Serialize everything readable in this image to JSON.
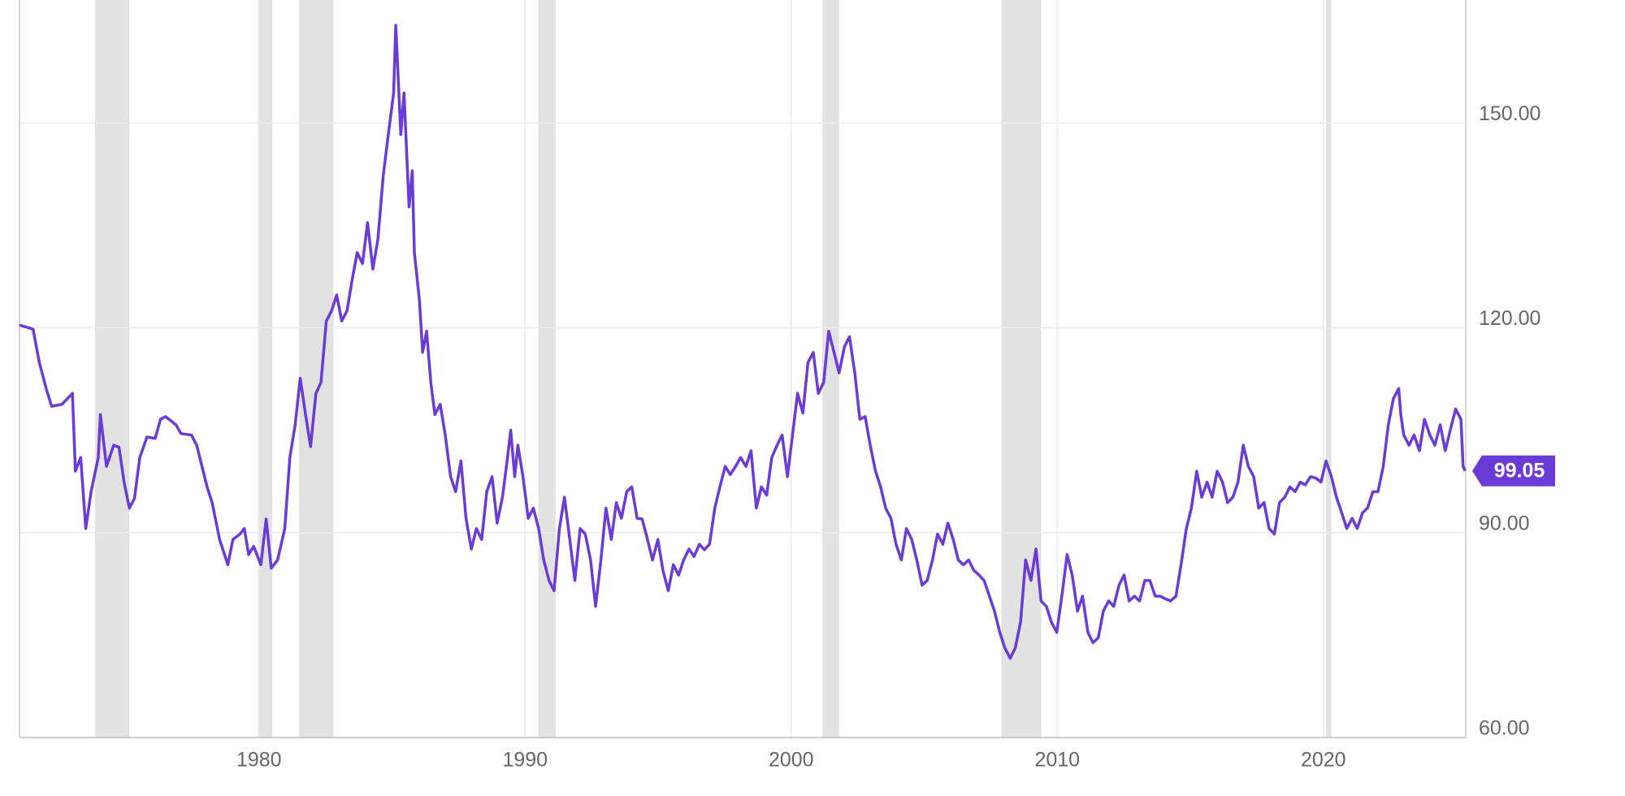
{
  "chart_data": {
    "type": "line",
    "x": [
      1971.0,
      1971.51,
      1971.74,
      1972.01,
      1972.21,
      1972.6,
      1972.99,
      1973.1,
      1973.3,
      1973.49,
      1973.69,
      1973.96,
      1974.04,
      1974.27,
      1974.54,
      1974.74,
      1974.93,
      1975.13,
      1975.32,
      1975.52,
      1975.79,
      1976.1,
      1976.3,
      1976.49,
      1976.88,
      1977.07,
      1977.46,
      1977.66,
      1978.05,
      1978.24,
      1978.52,
      1978.83,
      1979.02,
      1979.29,
      1979.45,
      1979.61,
      1979.8,
      1980.07,
      1980.27,
      1980.46,
      1980.7,
      1980.97,
      1981.16,
      1981.36,
      1981.55,
      1981.75,
      1981.94,
      1982.14,
      1982.33,
      1982.53,
      1982.73,
      1982.92,
      1983.11,
      1983.31,
      1983.5,
      1983.69,
      1983.89,
      1984.08,
      1984.28,
      1984.47,
      1984.67,
      1984.86,
      1985.06,
      1985.14,
      1985.33,
      1985.45,
      1985.64,
      1985.76,
      1985.84,
      1986.03,
      1986.15,
      1986.3,
      1986.46,
      1986.61,
      1986.81,
      1987.0,
      1987.2,
      1987.39,
      1987.59,
      1987.78,
      1987.98,
      1988.17,
      1988.37,
      1988.56,
      1988.76,
      1988.95,
      1989.15,
      1989.34,
      1989.46,
      1989.61,
      1989.73,
      1989.92,
      1990.12,
      1990.31,
      1990.51,
      1990.7,
      1990.9,
      1991.09,
      1991.29,
      1991.48,
      1991.68,
      1991.87,
      1992.07,
      1992.26,
      1992.46,
      1992.65,
      1992.85,
      1993.04,
      1993.24,
      1993.43,
      1993.62,
      1993.82,
      1994.01,
      1994.21,
      1994.4,
      1994.6,
      1994.79,
      1994.99,
      1995.18,
      1995.38,
      1995.57,
      1995.77,
      1995.96,
      1996.16,
      1996.35,
      1996.55,
      1996.74,
      1996.93,
      1997.13,
      1997.32,
      1997.52,
      1997.71,
      1997.91,
      1998.1,
      1998.3,
      1998.49,
      1998.69,
      1998.88,
      1999.08,
      1999.27,
      1999.47,
      1999.66,
      1999.86,
      2000.05,
      2000.24,
      2000.44,
      2000.63,
      2000.83,
      2001.02,
      2001.22,
      2001.41,
      2001.61,
      2001.8,
      2002.0,
      2002.19,
      2002.39,
      2002.58,
      2002.78,
      2002.97,
      2003.17,
      2003.36,
      2003.55,
      2003.75,
      2003.94,
      2004.14,
      2004.33,
      2004.53,
      2004.72,
      2004.92,
      2005.11,
      2005.31,
      2005.5,
      2005.7,
      2005.89,
      2006.09,
      2006.28,
      2006.47,
      2006.67,
      2006.86,
      2007.06,
      2007.25,
      2007.45,
      2007.64,
      2007.84,
      2008.03,
      2008.23,
      2008.42,
      2008.62,
      2008.81,
      2009.01,
      2009.2,
      2009.39,
      2009.59,
      2009.78,
      2009.98,
      2010.17,
      2010.37,
      2010.56,
      2010.76,
      2010.95,
      2011.15,
      2011.34,
      2011.54,
      2011.73,
      2011.93,
      2012.12,
      2012.32,
      2012.51,
      2012.7,
      2012.9,
      2013.09,
      2013.29,
      2013.48,
      2013.68,
      2013.87,
      2014.07,
      2014.26,
      2014.46,
      2014.65,
      2014.85,
      2015.04,
      2015.24,
      2015.43,
      2015.63,
      2015.82,
      2016.01,
      2016.21,
      2016.4,
      2016.6,
      2016.79,
      2016.99,
      2017.18,
      2017.38,
      2017.57,
      2017.77,
      2017.96,
      2018.16,
      2018.35,
      2018.55,
      2018.74,
      2018.94,
      2019.13,
      2019.32,
      2019.52,
      2019.71,
      2019.91,
      2020.1,
      2020.3,
      2020.49,
      2020.69,
      2020.88,
      2021.08,
      2021.27,
      2021.47,
      2021.66,
      2021.86,
      2022.05,
      2022.25,
      2022.44,
      2022.63,
      2022.83,
      2022.91,
      2023.02,
      2023.22,
      2023.41,
      2023.61,
      2023.8,
      2024.0,
      2024.19,
      2024.39,
      2024.58,
      2024.78,
      2024.97,
      2025.17,
      2025.25,
      2025.33
    ],
    "series": [
      {
        "color": "#6a3bd6",
        "values": [
          120.4,
          119.8,
          115,
          111,
          108.5,
          108.8,
          110.4,
          99,
          101,
          90.6,
          96,
          101,
          107.3,
          99.7,
          102.8,
          102.5,
          97.4,
          93.6,
          95,
          101,
          104,
          103.8,
          106.6,
          107,
          105.8,
          104.5,
          104.3,
          102.8,
          96.7,
          94.4,
          89,
          85.3,
          89,
          89.8,
          90.6,
          86.8,
          88,
          85.3,
          92,
          84.8,
          86,
          90.6,
          101,
          105.8,
          112.6,
          107.3,
          102.6,
          110.4,
          112,
          121,
          122.5,
          124.8,
          121,
          122.5,
          127,
          131,
          129.4,
          135.4,
          128.6,
          133,
          142.3,
          148.3,
          154.4,
          164.3,
          148.3,
          154.4,
          137.7,
          143,
          131,
          124,
          116.4,
          119.5,
          111.9,
          107.3,
          108.8,
          104.3,
          98.2,
          96,
          100.5,
          92.1,
          87.6,
          90.6,
          89,
          96,
          98.2,
          91.4,
          95.2,
          101,
          105,
          98.2,
          102.8,
          98.2,
          92.1,
          93.6,
          90.6,
          86,
          83,
          81.5,
          90.6,
          95.2,
          89,
          83,
          90.6,
          89.8,
          86,
          79.2,
          86,
          93.6,
          89,
          94.4,
          92.1,
          96,
          96.7,
          92.1,
          92,
          89,
          86,
          89,
          84.5,
          81.5,
          85.3,
          83.8,
          86,
          87.6,
          86.5,
          88.3,
          87.5,
          88.3,
          93.6,
          96.7,
          99.7,
          98.5,
          99.7,
          101,
          99.7,
          102,
          93.6,
          96.7,
          95.5,
          101,
          102.8,
          104.3,
          98.2,
          104.3,
          110.4,
          107.5,
          114.9,
          116.4,
          110.4,
          112,
          119.5,
          116.4,
          113.4,
          117.2,
          118.7,
          113.4,
          106.6,
          107,
          102.8,
          99,
          96.7,
          93.6,
          92.1,
          88.3,
          86,
          90.6,
          89,
          86,
          82.3,
          83,
          86,
          89.8,
          88.3,
          91.4,
          89,
          86,
          85.3,
          86,
          84.5,
          83.8,
          83,
          80.7,
          78.5,
          75.4,
          73.1,
          71.6,
          73.1,
          76.9,
          86,
          83,
          87.6,
          80,
          79.2,
          76.9,
          75.4,
          80.7,
          86.8,
          83.8,
          78.5,
          80.7,
          75.4,
          73.9,
          74.6,
          78.5,
          80,
          79.2,
          82.3,
          83.8,
          80,
          80.7,
          80,
          83,
          83,
          80.7,
          80.7,
          80.3,
          80,
          80.7,
          85.3,
          90.6,
          93.6,
          99,
          95.2,
          97.4,
          95.2,
          99,
          97.4,
          94.4,
          95.2,
          97.4,
          102.8,
          99.7,
          98.2,
          93.6,
          94.4,
          90.6,
          89.8,
          94.4,
          95.2,
          96.7,
          96,
          97.4,
          97,
          98.2,
          98,
          97.4,
          100.5,
          98.2,
          95.2,
          92.9,
          90.6,
          92.1,
          90.6,
          92.9,
          93.6,
          96,
          96,
          99.7,
          105.8,
          109.6,
          111.1,
          107.3,
          104.3,
          102.8,
          104.3,
          102,
          106.6,
          104.3,
          102.8,
          105.8,
          102,
          105.2,
          108.1,
          106.6,
          99.7,
          99.05
        ]
      }
    ],
    "current_value": 99.05,
    "recessions": [
      {
        "start": 1973.84,
        "end": 1975.13
      },
      {
        "start": 1979.96,
        "end": 1980.5
      },
      {
        "start": 1981.5,
        "end": 1982.8
      },
      {
        "start": 1990.5,
        "end": 1991.15
      },
      {
        "start": 2001.17,
        "end": 2001.8
      },
      {
        "start": 2007.9,
        "end": 2009.4
      },
      {
        "start": 2020.1,
        "end": 2020.3
      }
    ],
    "recession_color": "#e2e2e2",
    "xlim": [
      1971,
      2025.35
    ],
    "xticks": [
      1980,
      1990,
      2000,
      2010,
      2020
    ],
    "ylim": [
      60,
      168
    ],
    "yticks": [
      {
        "value": 60,
        "label": "60.00"
      },
      {
        "value": 90,
        "label": "90.00"
      },
      {
        "value": 120,
        "label": "120.00"
      },
      {
        "value": 150,
        "label": "150.00"
      }
    ],
    "grid": true
  }
}
